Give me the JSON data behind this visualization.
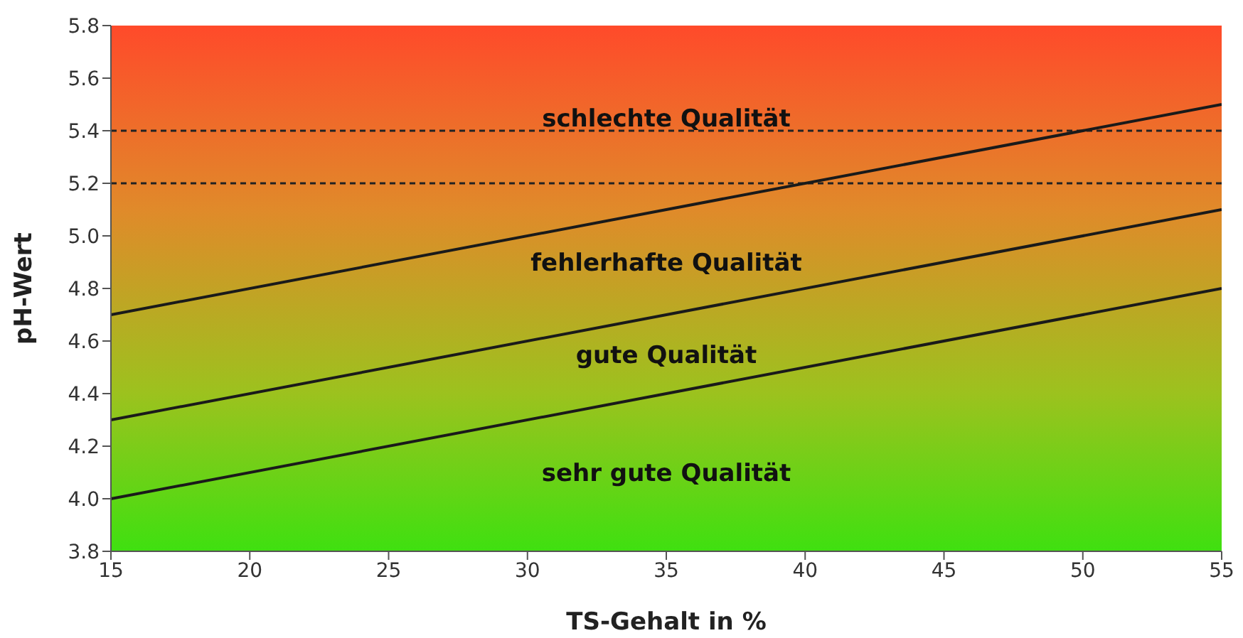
{
  "chart_data": {
    "type": "line",
    "xlabel": "TS-Gehalt in %",
    "ylabel": "pH-Wert",
    "xlim": [
      15,
      55
    ],
    "xticks": [
      15,
      20,
      25,
      30,
      35,
      40,
      45,
      50,
      55
    ],
    "ylim": [
      3.8,
      5.8
    ],
    "yticks": [
      {
        "value": 3.8,
        "label": "3.8"
      },
      {
        "value": 4.0,
        "label": "4.0"
      },
      {
        "value": 4.2,
        "label": "4.2"
      },
      {
        "value": 4.4,
        "label": "4.4"
      },
      {
        "value": 4.6,
        "label": "4.6"
      },
      {
        "value": 4.8,
        "label": "4.8"
      },
      {
        "value": 5.0,
        "label": "5.0"
      },
      {
        "value": 5.2,
        "label": "5.2"
      },
      {
        "value": 5.4,
        "label": "5.4"
      },
      {
        "value": 5.6,
        "label": "5.6"
      },
      {
        "value": 5.8,
        "label": "5.8"
      }
    ],
    "x": [
      15,
      55
    ],
    "series": [
      {
        "color": "#1a1a1a",
        "values": [
          4.7,
          5.5
        ]
      },
      {
        "color": "#1a1a1a",
        "values": [
          4.3,
          5.1
        ]
      },
      {
        "color": "#1a1a1a",
        "values": [
          4.0,
          4.8
        ]
      }
    ],
    "ref_lines": [
      {
        "axis": "y",
        "value": 5.4,
        "color": "#222222",
        "line_style": "dashed"
      },
      {
        "axis": "y",
        "value": 5.2,
        "color": "#222222",
        "line_style": "dashed"
      }
    ],
    "annotations": [
      "schlechte Qualität",
      "fehlerhafte Qualität",
      "gute Qualität",
      "sehr gute Qualität"
    ],
    "grid": false,
    "marker": "none",
    "line_style": "solid"
  }
}
